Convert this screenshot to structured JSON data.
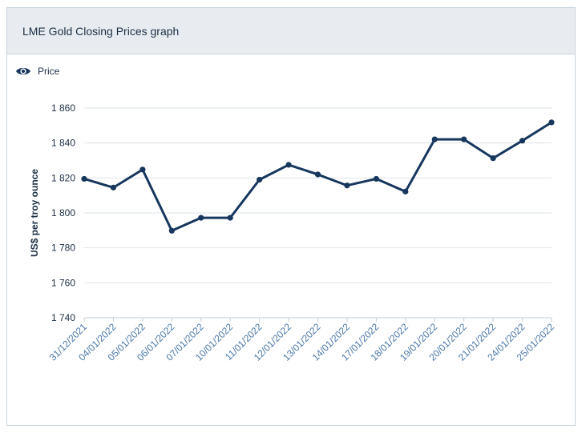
{
  "header": {
    "title": "LME Gold Closing Prices graph"
  },
  "legend": {
    "label": "Price",
    "icon": "eye-icon"
  },
  "colors": {
    "line": "#17375e",
    "grid": "#dde3e9",
    "text": "#1c2e45",
    "tick": "#4a78a8"
  },
  "chart_data": {
    "type": "line",
    "title": "LME Gold Closing Prices graph",
    "ylabel": "US$ per troy ounce",
    "xlabel": "",
    "ylim": [
      1740,
      1860
    ],
    "yticks": [
      "1 740",
      "1 760",
      "1 780",
      "1 800",
      "1 820",
      "1 840",
      "1 860"
    ],
    "grid": true,
    "legend_position": "top-left",
    "categories": [
      "31/12/2021",
      "04/01/2022",
      "05/01/2022",
      "06/01/2022",
      "07/01/2022",
      "10/01/2022",
      "11/01/2022",
      "12/01/2022",
      "13/01/2022",
      "14/01/2022",
      "17/01/2022",
      "18/01/2022",
      "19/01/2022",
      "20/01/2022",
      "21/01/2022",
      "24/01/2022",
      "25/01/2022"
    ],
    "series": [
      {
        "name": "Price",
        "values": [
          1819.5,
          1814.5,
          1824.8,
          1789.8,
          1797.2,
          1797.2,
          1819.0,
          1827.5,
          1822.0,
          1815.7,
          1819.5,
          1812.2,
          1842.1,
          1842.1,
          1831.3,
          1841.3,
          1851.8
        ]
      }
    ]
  }
}
